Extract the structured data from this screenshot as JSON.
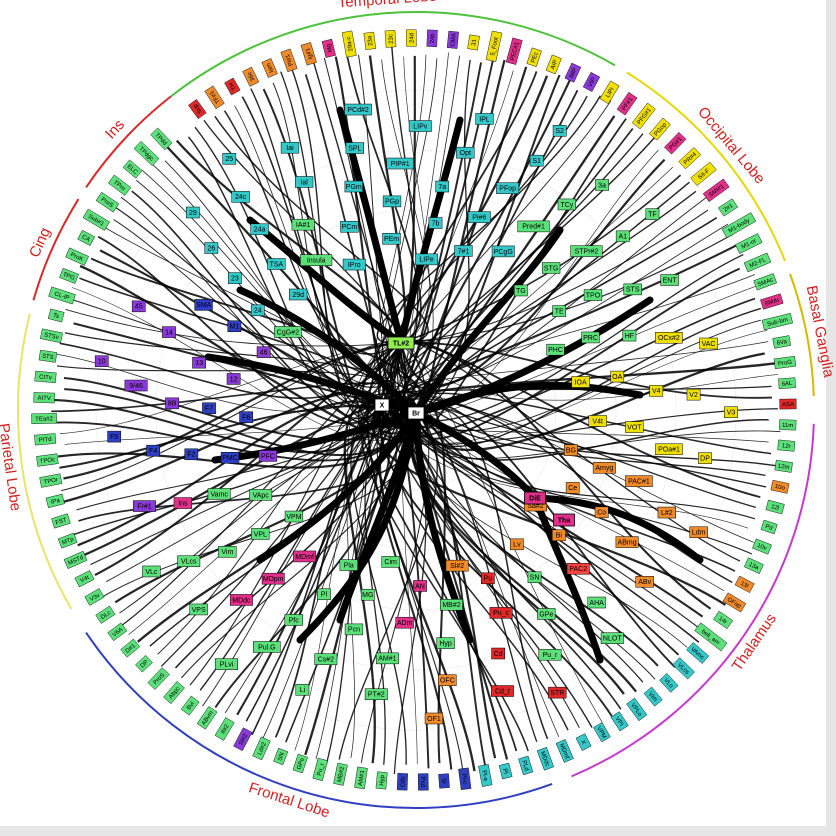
{
  "regions": [
    {
      "name": "Temporal Lobe",
      "start": -128,
      "end": -60,
      "color": "#4cc23a"
    },
    {
      "name": "Occipital Lobe",
      "start": -58,
      "end": -22,
      "color": "#e5d800"
    },
    {
      "name": "Basal Ganglia",
      "start": -20,
      "end": -2,
      "color": "#d7b800"
    },
    {
      "name": "Thalamus",
      "start": 2,
      "end": 67,
      "color": "#c43ad0"
    },
    {
      "name": "Frontal Lobe",
      "start": 70,
      "end": 146,
      "color": "#2f3fc2"
    },
    {
      "name": "Parietal Lobe",
      "start": 150,
      "end": 194,
      "color": "#e9e36a"
    },
    {
      "name": "Cing",
      "start": 196,
      "end": 212,
      "color": "#d92a2a"
    },
    {
      "name": "Ins",
      "start": 214,
      "end": 232,
      "color": "#d92a2a"
    }
  ],
  "hubs": [
    {
      "label": "Br",
      "color": "#ffffff"
    },
    {
      "label": "X",
      "color": "#ffffff"
    },
    {
      "label": "TL#2",
      "color": "#90ee50"
    },
    {
      "label": "DiE",
      "color": "#e0308a"
    },
    {
      "label": "Tha",
      "color": "#e0308a"
    }
  ],
  "inner_nodes": [
    {
      "label": "CgG#2",
      "color": "#5ce07a"
    },
    {
      "label": "24",
      "color": "#34c8c8"
    },
    {
      "label": "23",
      "color": "#34c8c8"
    },
    {
      "label": "26",
      "color": "#34c8c8"
    },
    {
      "label": "29",
      "color": "#34c8c8"
    },
    {
      "label": "29d",
      "color": "#34c8c8"
    },
    {
      "label": "TSA",
      "color": "#34c8c8"
    },
    {
      "label": "24a",
      "color": "#34c8c8"
    },
    {
      "label": "24c",
      "color": "#34c8c8"
    },
    {
      "label": "25",
      "color": "#34c8c8"
    },
    {
      "label": "Insula",
      "color": "#5ce07a"
    },
    {
      "label": "IA#1",
      "color": "#5ce07a"
    },
    {
      "label": "Ial",
      "color": "#34c8c8"
    },
    {
      "label": "Iai",
      "color": "#34c8c8"
    },
    {
      "label": "IPro",
      "color": "#34c8c8"
    },
    {
      "label": "PCm",
      "color": "#34c8c8"
    },
    {
      "label": "PGm",
      "color": "#34c8c8"
    },
    {
      "label": "SPL",
      "color": "#34c8c8"
    },
    {
      "label": "PCd#2",
      "color": "#34c8c8"
    },
    {
      "label": "PEm",
      "color": "#34c8c8"
    },
    {
      "label": "PGp",
      "color": "#34c8c8"
    },
    {
      "label": "PIP#1",
      "color": "#34c8c8"
    },
    {
      "label": "LIPv",
      "color": "#34c8c8"
    },
    {
      "label": "LIPe",
      "color": "#34c8c8"
    },
    {
      "label": "7b",
      "color": "#34c8c8"
    },
    {
      "label": "7a",
      "color": "#34c8c8"
    },
    {
      "label": "Opt",
      "color": "#34c8c8"
    },
    {
      "label": "IPL",
      "color": "#34c8c8"
    },
    {
      "label": "7#1",
      "color": "#34c8c8"
    },
    {
      "label": "Pi#6",
      "color": "#34c8c8"
    },
    {
      "label": "PFop",
      "color": "#34c8c8"
    },
    {
      "label": "S1",
      "color": "#34c8c8"
    },
    {
      "label": "S2",
      "color": "#34c8c8"
    },
    {
      "label": "PCgG",
      "color": "#34c8c8"
    },
    {
      "label": "Pred#1",
      "color": "#5ce07a"
    },
    {
      "label": "TCy",
      "color": "#5ce07a"
    },
    {
      "label": "3a",
      "color": "#5ce07a"
    },
    {
      "label": "TG",
      "color": "#5ce07a"
    },
    {
      "label": "STG",
      "color": "#5ce07a"
    },
    {
      "label": "STPr#2",
      "color": "#5ce07a"
    },
    {
      "label": "A1",
      "color": "#5ce07a"
    },
    {
      "label": "TF",
      "color": "#5ce07a"
    },
    {
      "label": "TE",
      "color": "#5ce07a"
    },
    {
      "label": "TPO",
      "color": "#5ce07a"
    },
    {
      "label": "STS",
      "color": "#5ce07a"
    },
    {
      "label": "ENT",
      "color": "#5ce07a"
    },
    {
      "label": "PHC",
      "color": "#5ce07a"
    },
    {
      "label": "PRC",
      "color": "#5ce07a"
    },
    {
      "label": "HF",
      "color": "#5ce07a"
    },
    {
      "label": "OCx#2",
      "color": "#f0e000"
    },
    {
      "label": "VAC",
      "color": "#f0e000"
    },
    {
      "label": "IOA",
      "color": "#f0e000"
    },
    {
      "label": "OA",
      "color": "#f0e000"
    },
    {
      "label": "V4",
      "color": "#f0e000"
    },
    {
      "label": "V2",
      "color": "#f0e000"
    },
    {
      "label": "V3",
      "color": "#f0e000"
    },
    {
      "label": "V4t",
      "color": "#f0e000"
    },
    {
      "label": "VOT",
      "color": "#f0e000"
    },
    {
      "label": "POa#1",
      "color": "#f0e000"
    },
    {
      "label": "DP",
      "color": "#f0e000"
    },
    {
      "label": "BG",
      "color": "#f08a2a"
    },
    {
      "label": "Amyg",
      "color": "#f08a2a"
    },
    {
      "label": "PAC#1",
      "color": "#f08a2a"
    },
    {
      "label": "L#2",
      "color": "#f08a2a"
    },
    {
      "label": "Ldm",
      "color": "#f08a2a"
    },
    {
      "label": "Ce",
      "color": "#f08a2a"
    },
    {
      "label": "Co",
      "color": "#f08a2a"
    },
    {
      "label": "ABmg",
      "color": "#f08a2a"
    },
    {
      "label": "ABv",
      "color": "#f08a2a"
    },
    {
      "label": "Sa#2",
      "color": "#f08a2a"
    },
    {
      "label": "Bi",
      "color": "#f08a2a"
    },
    {
      "label": "PAC2",
      "color": "#ff4040"
    },
    {
      "label": "AHA",
      "color": "#5ce07a"
    },
    {
      "label": "NLOT",
      "color": "#5ce07a"
    },
    {
      "label": "Lv",
      "color": "#f08a2a"
    },
    {
      "label": "SN",
      "color": "#5ce07a"
    },
    {
      "label": "GPe",
      "color": "#5ce07a"
    },
    {
      "label": "Pu_r",
      "color": "#5ce07a"
    },
    {
      "label": "STR",
      "color": "#e02828"
    },
    {
      "label": "Pu",
      "color": "#e02828"
    },
    {
      "label": "Pu_c",
      "color": "#e02828"
    },
    {
      "label": "Cd",
      "color": "#e02828"
    },
    {
      "label": "Cd_t",
      "color": "#e02828"
    },
    {
      "label": "Sl#2",
      "color": "#f08a2a"
    },
    {
      "label": "MB#2",
      "color": "#5ce07a"
    },
    {
      "label": "Hyp",
      "color": "#5ce07a"
    },
    {
      "label": "OFC",
      "color": "#f08a2a"
    },
    {
      "label": "OF1",
      "color": "#f08a2a"
    },
    {
      "label": "AN",
      "color": "#e0308a"
    },
    {
      "label": "ADm",
      "color": "#e0308a"
    },
    {
      "label": "AM#1",
      "color": "#5ce07a"
    },
    {
      "label": "PT#2",
      "color": "#5ce07a"
    },
    {
      "label": "Cim",
      "color": "#5ce07a"
    },
    {
      "label": "MG",
      "color": "#5ce07a"
    },
    {
      "label": "Pcn",
      "color": "#5ce07a"
    },
    {
      "label": "Cs#2",
      "color": "#5ce07a"
    },
    {
      "label": "Li",
      "color": "#5ce07a"
    },
    {
      "label": "Pla",
      "color": "#5ce07a"
    },
    {
      "label": "Pl",
      "color": "#5ce07a"
    },
    {
      "label": "Pfc",
      "color": "#5ce07a"
    },
    {
      "label": "Pul.G",
      "color": "#5ce07a"
    },
    {
      "label": "PLvi",
      "color": "#5ce07a"
    },
    {
      "label": "MDmf",
      "color": "#e0308a"
    },
    {
      "label": "MDpm",
      "color": "#e0308a"
    },
    {
      "label": "MDdc",
      "color": "#e0308a"
    },
    {
      "label": "VPS",
      "color": "#5ce07a"
    },
    {
      "label": "VPM",
      "color": "#5ce07a"
    },
    {
      "label": "VPL",
      "color": "#5ce07a"
    },
    {
      "label": "Vim",
      "color": "#5ce07a"
    },
    {
      "label": "VLcs",
      "color": "#5ce07a"
    },
    {
      "label": "VLc",
      "color": "#5ce07a"
    },
    {
      "label": "VApc",
      "color": "#5ce07a"
    },
    {
      "label": "Vamc",
      "color": "#5ce07a"
    },
    {
      "label": "Ins",
      "color": "#e0308a"
    },
    {
      "label": "Fr#1",
      "color": "#8a3ad8"
    },
    {
      "label": "PFC",
      "color": "#8a3ad8"
    },
    {
      "label": "PMC",
      "color": "#2f3fc2"
    },
    {
      "label": "F2",
      "color": "#2f3fc2"
    },
    {
      "label": "F4",
      "color": "#2f3fc2"
    },
    {
      "label": "F5",
      "color": "#2f3fc2"
    },
    {
      "label": "F6",
      "color": "#2f3fc2"
    },
    {
      "label": "F7",
      "color": "#2f3fc2"
    },
    {
      "label": "8B",
      "color": "#8a3ad8"
    },
    {
      "label": "9/46",
      "color": "#8a3ad8"
    },
    {
      "label": "10",
      "color": "#8a3ad8"
    },
    {
      "label": "12",
      "color": "#8a3ad8"
    },
    {
      "label": "13",
      "color": "#8a3ad8"
    },
    {
      "label": "14",
      "color": "#8a3ad8"
    },
    {
      "label": "45",
      "color": "#8a3ad8"
    },
    {
      "label": "46",
      "color": "#8a3ad8"
    },
    {
      "label": "M1",
      "color": "#2f3fc2"
    },
    {
      "label": "SMA",
      "color": "#2f3fc2"
    }
  ],
  "outer_labels": [
    {
      "label": "Sup",
      "color": "#e02828"
    },
    {
      "label": "TF#1",
      "color": "#f08a2a"
    },
    {
      "label": "TH",
      "color": "#e02828"
    },
    {
      "label": "36c",
      "color": "#f08a2a"
    },
    {
      "label": "Iam",
      "color": "#f08a2a"
    },
    {
      "label": "Pi#1",
      "color": "#f08a2a"
    },
    {
      "label": "Ig#1",
      "color": "#f08a2a"
    },
    {
      "label": "Idg",
      "color": "#e0308a"
    },
    {
      "label": "29a-c",
      "color": "#f0e000"
    },
    {
      "label": "23a",
      "color": "#f0e000"
    },
    {
      "label": "23c",
      "color": "#f0e000"
    },
    {
      "label": "24d",
      "color": "#f0e000"
    },
    {
      "label": "24b",
      "color": "#8a3ad8"
    },
    {
      "label": "CMA",
      "color": "#8a3ad8"
    },
    {
      "label": "31",
      "color": "#f0e000"
    },
    {
      "label": "5_Foot",
      "color": "#f0e000"
    },
    {
      "label": "PEC#1",
      "color": "#e0308a"
    },
    {
      "label": "PEc",
      "color": "#f0e000"
    },
    {
      "label": "AIP",
      "color": "#f0e000"
    },
    {
      "label": "MIP",
      "color": "#8a3ad8"
    },
    {
      "label": "VIP",
      "color": "#8a3ad8"
    },
    {
      "label": "LIPi",
      "color": "#f0e000"
    },
    {
      "label": "PF#1",
      "color": "#e0308a"
    },
    {
      "label": "PFG#1",
      "color": "#f0e000"
    },
    {
      "label": "PGop",
      "color": "#f0e000"
    },
    {
      "label": "PG#1",
      "color": "#e0308a"
    },
    {
      "label": "PR#4",
      "color": "#f0e000"
    },
    {
      "label": "SII-F",
      "color": "#f0e000"
    },
    {
      "label": "SMI#1",
      "color": "#e0308a"
    },
    {
      "label": "2#1",
      "color": "#5ce07a"
    },
    {
      "label": "M1-body",
      "color": "#5ce07a"
    },
    {
      "label": "M1-or",
      "color": "#5ce07a"
    },
    {
      "label": "M2-FL",
      "color": "#5ce07a"
    },
    {
      "label": "SMAc",
      "color": "#5ce07a"
    },
    {
      "label": "SMAr",
      "color": "#e0308a"
    },
    {
      "label": "Sub-bm",
      "color": "#5ce07a"
    },
    {
      "label": "6Va",
      "color": "#5ce07a"
    },
    {
      "label": "ProG",
      "color": "#5ce07a"
    },
    {
      "label": "6AL",
      "color": "#5ce07a"
    },
    {
      "label": "ASA",
      "color": "#e02828"
    },
    {
      "label": "11m",
      "color": "#5ce07a"
    },
    {
      "label": "12r",
      "color": "#5ce07a"
    },
    {
      "label": "12m",
      "color": "#5ce07a"
    },
    {
      "label": "10o",
      "color": "#f08a2a"
    },
    {
      "label": "12l",
      "color": "#5ce07a"
    },
    {
      "label": "Pd",
      "color": "#5ce07a"
    },
    {
      "label": "10v",
      "color": "#5ce07a"
    },
    {
      "label": "13a",
      "color": "#5ce07a"
    },
    {
      "label": "13l",
      "color": "#f08a2a"
    },
    {
      "label": "OFap",
      "color": "#f08a2a"
    },
    {
      "label": "14r",
      "color": "#5ce07a"
    },
    {
      "label": "beli_am",
      "color": "#5ce07a"
    },
    {
      "label": "VAmc",
      "color": "#34c8c8"
    },
    {
      "label": "VLcs",
      "color": "#34c8c8"
    },
    {
      "label": "VLo",
      "color": "#34c8c8"
    },
    {
      "label": "Vim",
      "color": "#34c8c8"
    },
    {
      "label": "VPLo",
      "color": "#34c8c8"
    },
    {
      "label": "VPI",
      "color": "#34c8c8"
    },
    {
      "label": "VPM",
      "color": "#34c8c8"
    },
    {
      "label": "X",
      "color": "#34c8c8"
    },
    {
      "label": "MDmf",
      "color": "#34c8c8"
    },
    {
      "label": "MDdc",
      "color": "#34c8c8"
    },
    {
      "label": "PLd",
      "color": "#34c8c8"
    },
    {
      "label": "Pl",
      "color": "#34c8c8"
    },
    {
      "label": "Pl-a",
      "color": "#34c8c8"
    },
    {
      "label": "Pl-c",
      "color": "#2f3fc2"
    },
    {
      "label": "Sl",
      "color": "#2f3fc2"
    },
    {
      "label": "Pcd",
      "color": "#2f3fc2"
    },
    {
      "label": "Cdc",
      "color": "#2f3fc2"
    },
    {
      "label": "Hyp",
      "color": "#5ce07a"
    },
    {
      "label": "AM#1",
      "color": "#5ce07a"
    },
    {
      "label": "MB#2",
      "color": "#5ce07a"
    },
    {
      "label": "Pu_r",
      "color": "#5ce07a"
    },
    {
      "label": "GPe",
      "color": "#5ce07a"
    },
    {
      "label": "SN",
      "color": "#5ce07a"
    },
    {
      "label": "Ld#2",
      "color": "#5ce07a"
    },
    {
      "label": "Sl#2",
      "color": "#8a3ad8"
    },
    {
      "label": "If#2",
      "color": "#5ce07a"
    },
    {
      "label": "ABvm",
      "color": "#5ce07a"
    },
    {
      "label": "Bvl",
      "color": "#5ce07a"
    },
    {
      "label": "Abpc",
      "color": "#5ce07a"
    },
    {
      "label": "ProS",
      "color": "#5ce07a"
    },
    {
      "label": "DP",
      "color": "#5ce07a"
    },
    {
      "label": "D#1",
      "color": "#5ce07a"
    },
    {
      "label": "V6A",
      "color": "#5ce07a"
    },
    {
      "label": "DLc",
      "color": "#5ce07a"
    },
    {
      "label": "V3v",
      "color": "#5ce07a"
    },
    {
      "label": "V4t",
      "color": "#5ce07a"
    },
    {
      "label": "MSTd",
      "color": "#5ce07a"
    },
    {
      "label": "MTp",
      "color": "#5ce07a"
    },
    {
      "label": "FST",
      "color": "#5ce07a"
    },
    {
      "label": "IPa",
      "color": "#5ce07a"
    },
    {
      "label": "TPOr",
      "color": "#5ce07a"
    },
    {
      "label": "TPOc",
      "color": "#5ce07a"
    },
    {
      "label": "PITd",
      "color": "#5ce07a"
    },
    {
      "label": "TEa#2",
      "color": "#5ce07a"
    },
    {
      "label": "AITV",
      "color": "#5ce07a"
    },
    {
      "label": "CITv",
      "color": "#5ce07a"
    },
    {
      "label": "STS",
      "color": "#5ce07a"
    },
    {
      "label": "STSv",
      "color": "#5ce07a"
    },
    {
      "label": "Ts",
      "color": "#5ce07a"
    },
    {
      "label": "CL-IP",
      "color": "#5ce07a"
    },
    {
      "label": "TPG",
      "color": "#5ce07a"
    },
    {
      "label": "ProK",
      "color": "#5ce07a"
    },
    {
      "label": "CA",
      "color": "#5ce07a"
    },
    {
      "label": "Sub#1",
      "color": "#5ce07a"
    },
    {
      "label": "PreS",
      "color": "#5ce07a"
    },
    {
      "label": "TPro",
      "color": "#5ce07a"
    },
    {
      "label": "ELC",
      "color": "#5ce07a"
    },
    {
      "label": "TPdgc",
      "color": "#5ce07a"
    },
    {
      "label": "TPdd",
      "color": "#5ce07a"
    }
  ]
}
